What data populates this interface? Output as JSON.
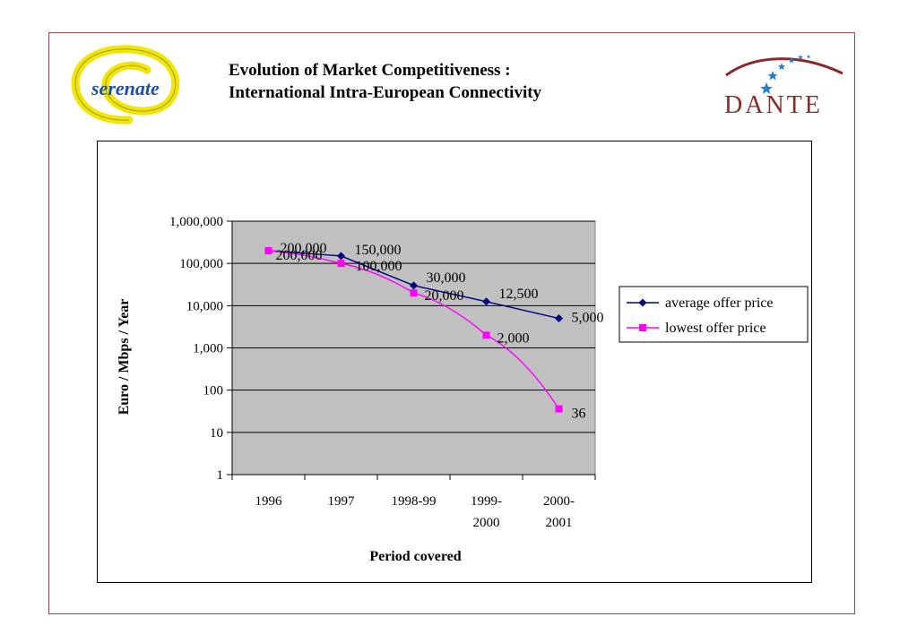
{
  "header": {
    "title_line1": "Evolution of Market Competitiveness :",
    "title_line2": "International Intra-European Connectivity",
    "logo_left_text": "serenate",
    "logo_right_text": "DANTE"
  },
  "colors": {
    "frame": "#9a4a4a",
    "plot_bg": "#c0c0c0",
    "average": "#000080",
    "lowest": "#ff00ff",
    "logo_yellow": "#f2e600",
    "logo_blue": "#1f4fa6",
    "dante_red": "#8b2a2a"
  },
  "chart_data": {
    "type": "line",
    "categories": [
      [
        "1996"
      ],
      [
        "1997"
      ],
      [
        "1998-99"
      ],
      [
        "1999-",
        "2000"
      ],
      [
        "2000-",
        "2001"
      ]
    ],
    "series": [
      {
        "name": "average offer price",
        "values": [
          200000,
          150000,
          30000,
          12500,
          5000
        ],
        "labels": [
          "200,000",
          "150,000",
          "30,000",
          "12,500",
          "5,000"
        ],
        "marker": "diamond"
      },
      {
        "name": "lowest offer price",
        "values": [
          200000,
          100000,
          20000,
          2000,
          36
        ],
        "labels": [
          "200,000",
          "100,000",
          "20,000",
          "2,000",
          "36"
        ],
        "marker": "square"
      }
    ],
    "xlabel": "Period covered",
    "ylabel": "Euro / Mbps / Year",
    "yscale": "log",
    "ylim": [
      1,
      1000000
    ],
    "yticks": [
      1,
      10,
      100,
      1000,
      10000,
      100000,
      1000000
    ],
    "ytick_labels": [
      "1",
      "10",
      "100",
      "1,000",
      "10,000",
      "100,000",
      "1,000,000"
    ],
    "grid": true,
    "legend": "right"
  }
}
